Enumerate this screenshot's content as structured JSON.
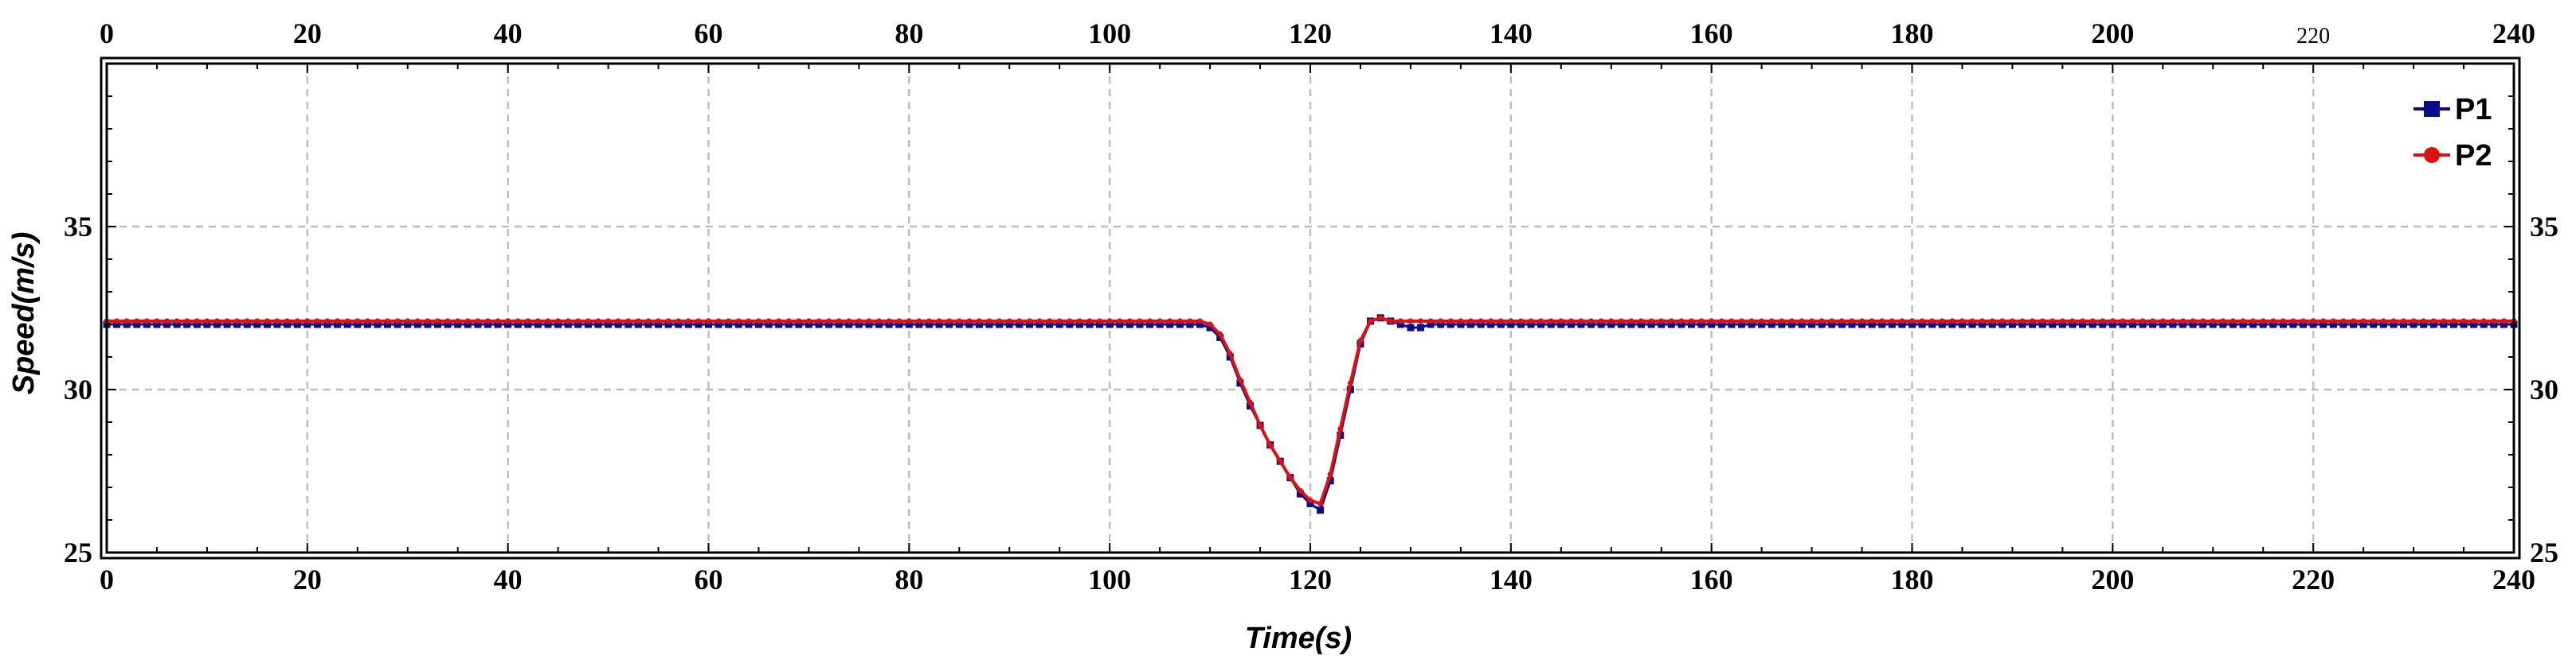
{
  "chart_data": {
    "type": "line",
    "title": "",
    "xlabel": "Time(s)",
    "ylabel": "Speed(m/s)",
    "xlim": [
      0,
      240
    ],
    "ylim": [
      25,
      40
    ],
    "grid": true,
    "legend_position": "top-right",
    "x_ticks": [
      "0",
      "20",
      "40",
      "60",
      "80",
      "100",
      "120",
      "140",
      "160",
      "180",
      "200",
      "220",
      "240"
    ],
    "x_ticks_top": [
      "0",
      "20",
      "40",
      "60",
      "80",
      "100",
      "120",
      "140",
      "160",
      "180",
      "200",
      "220",
      "240"
    ],
    "y_ticks": [
      "25",
      "30",
      "35"
    ],
    "y_ticks_right": [
      "25",
      "30",
      "35"
    ],
    "series": [
      {
        "name": "P1",
        "color": "#0a0a8c",
        "marker": "square",
        "points": [
          [
            0,
            32.0
          ],
          [
            20,
            32.0
          ],
          [
            40,
            32.0
          ],
          [
            60,
            32.0
          ],
          [
            80,
            32.0
          ],
          [
            100,
            32.0
          ],
          [
            109,
            32.0
          ],
          [
            110,
            31.9
          ],
          [
            111,
            31.6
          ],
          [
            112,
            31.0
          ],
          [
            113,
            30.2
          ],
          [
            114,
            29.5
          ],
          [
            115,
            28.9
          ],
          [
            116,
            28.3
          ],
          [
            117,
            27.8
          ],
          [
            118,
            27.3
          ],
          [
            119,
            26.8
          ],
          [
            120,
            26.5
          ],
          [
            121,
            26.3
          ],
          [
            122,
            27.2
          ],
          [
            123,
            28.6
          ],
          [
            124,
            30.0
          ],
          [
            125,
            31.4
          ],
          [
            126,
            32.1
          ],
          [
            127,
            32.2
          ],
          [
            128,
            32.1
          ],
          [
            129,
            32.0
          ],
          [
            130,
            31.9
          ],
          [
            131,
            31.9
          ],
          [
            132,
            32.0
          ],
          [
            140,
            32.0
          ],
          [
            160,
            32.0
          ],
          [
            180,
            32.0
          ],
          [
            200,
            32.0
          ],
          [
            220,
            32.0
          ],
          [
            240,
            32.0
          ]
        ]
      },
      {
        "name": "P2",
        "color": "#e01010",
        "marker": "circle",
        "points": [
          [
            0,
            32.1
          ],
          [
            20,
            32.1
          ],
          [
            40,
            32.1
          ],
          [
            60,
            32.1
          ],
          [
            80,
            32.1
          ],
          [
            100,
            32.1
          ],
          [
            109,
            32.1
          ],
          [
            110,
            32.0
          ],
          [
            111,
            31.7
          ],
          [
            112,
            31.1
          ],
          [
            113,
            30.3
          ],
          [
            114,
            29.6
          ],
          [
            115,
            28.9
          ],
          [
            116,
            28.3
          ],
          [
            117,
            27.8
          ],
          [
            118,
            27.3
          ],
          [
            119,
            26.9
          ],
          [
            120,
            26.6
          ],
          [
            121,
            26.5
          ],
          [
            122,
            27.4
          ],
          [
            123,
            28.8
          ],
          [
            124,
            30.2
          ],
          [
            125,
            31.5
          ],
          [
            126,
            32.1
          ],
          [
            127,
            32.2
          ],
          [
            128,
            32.1
          ],
          [
            129,
            32.1
          ],
          [
            130,
            32.1
          ],
          [
            131,
            32.1
          ],
          [
            132,
            32.1
          ],
          [
            140,
            32.1
          ],
          [
            160,
            32.1
          ],
          [
            180,
            32.1
          ],
          [
            200,
            32.1
          ],
          [
            220,
            32.1
          ],
          [
            240,
            32.1
          ]
        ]
      }
    ]
  }
}
